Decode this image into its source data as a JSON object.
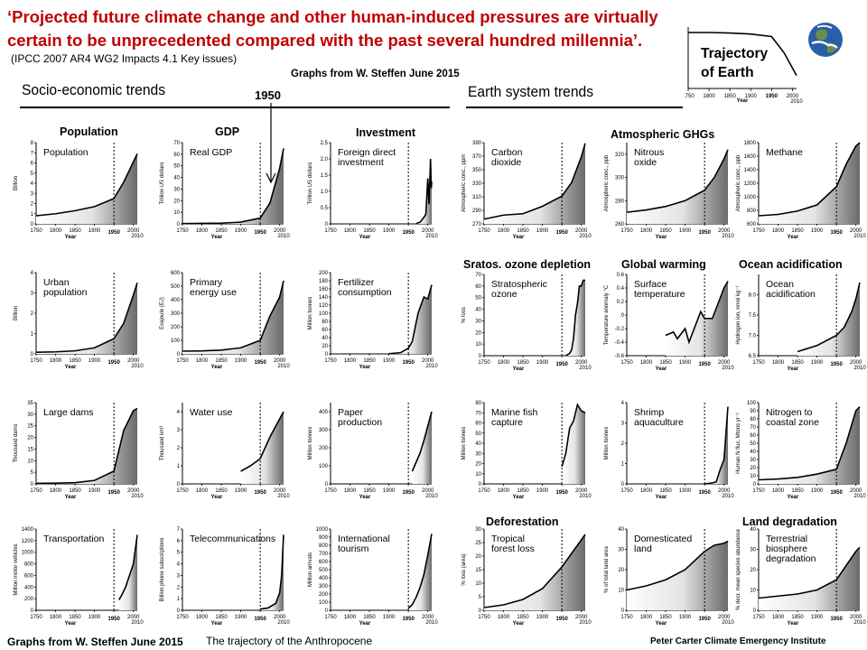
{
  "header": {
    "quote": "‘Projected future climate change and other human-induced  pressures are virtually certain to be unprecedented compared with the past several hundred millennia’.",
    "citation": "(IPCC 2007 AR4 WG2 Impacts 4.1 Key issues)",
    "credit": "Graphs from W. Steffen June 2015",
    "socio_title": "Socio-economic trends",
    "earth_title": "Earth system trends",
    "marker_1950": "1950"
  },
  "inset": {
    "title_line1": "Trajectory",
    "title_line2": "of Earth",
    "x_ticks": [
      "1750",
      "1800",
      "1850",
      "1900",
      "1950",
      "2000"
    ],
    "x_end": "2010",
    "xlabel": "Year",
    "values": [
      1.0,
      1.0,
      0.99,
      0.97,
      0.92,
      0.6,
      0.15
    ],
    "globe_icon": "earth-globe-icon",
    "colors": {
      "ocean": "#2a5fa8",
      "land": "#6a8d4a",
      "cloud": "#f4f4f4"
    }
  },
  "annotations": {
    "population": "Population",
    "gdp": "GDP",
    "investment": "Investment",
    "ghg": "Atmospheric GHGs",
    "ozone": "Sratos.  ozone depletion",
    "warming": "Global warming",
    "acid": "Ocean acidification",
    "deforest": "Deforestation",
    "landdeg": "Land degradation"
  },
  "footer": {
    "left": "Graphs from W. Steffen June 2015",
    "middle": "The trajectory of the Anthropocene",
    "right": "Peter Carter Climate Emergency Institute"
  },
  "chart_data": [
    {
      "id": "population",
      "type": "area",
      "title": [
        "Population"
      ],
      "ylabel": "Billion",
      "ylim": [
        0,
        8
      ],
      "yticks": [
        "0",
        "1",
        "2",
        "3",
        "4",
        "5",
        "6",
        "7",
        "8"
      ],
      "x": [
        1750,
        1800,
        1850,
        1900,
        1950,
        1975,
        2000,
        2010
      ],
      "y": [
        0.8,
        1.0,
        1.3,
        1.7,
        2.5,
        4.1,
        6.1,
        6.9
      ]
    },
    {
      "id": "gdp",
      "type": "area",
      "title": [
        "Real GDP"
      ],
      "ylabel": "Trillion US dollars",
      "ylim": [
        0,
        70
      ],
      "yticks": [
        "0",
        "10",
        "20",
        "30",
        "40",
        "50",
        "60",
        "70"
      ],
      "x": [
        1750,
        1800,
        1850,
        1900,
        1950,
        1975,
        2000,
        2010
      ],
      "y": [
        0.3,
        0.4,
        0.6,
        1.5,
        5,
        18,
        48,
        65
      ]
    },
    {
      "id": "investment",
      "type": "area",
      "title": [
        "Foreign direct",
        "investment"
      ],
      "ylabel": "Trillion US dollars",
      "ylim": [
        0,
        2.5
      ],
      "yticks": [
        "0",
        "0.5",
        "1.0",
        "1.5",
        "2.0",
        "2.5"
      ],
      "x": [
        1970,
        1980,
        1990,
        1995,
        2000,
        2003,
        2007,
        2009,
        2010
      ],
      "y": [
        0.01,
        0.05,
        0.2,
        0.3,
        1.4,
        0.6,
        2.0,
        1.1,
        1.3
      ]
    },
    {
      "id": "co2",
      "type": "area",
      "title": [
        "Carbon",
        "dioxide"
      ],
      "ylabel": "Atmospheric conc., ppm",
      "ylim": [
        270,
        390
      ],
      "yticks": [
        "270",
        "290",
        "310",
        "330",
        "350",
        "370",
        "390"
      ],
      "x": [
        1750,
        1800,
        1850,
        1900,
        1950,
        1975,
        2000,
        2010
      ],
      "y": [
        277,
        283,
        285,
        296,
        311,
        331,
        369,
        389
      ]
    },
    {
      "id": "n2o",
      "type": "area",
      "title": [
        "Nitrous",
        "oxide"
      ],
      "ylabel": "Atmospheric conc., ppb",
      "ylim": [
        260,
        330
      ],
      "yticks": [
        "260",
        "280",
        "300",
        "320"
      ],
      "x": [
        1750,
        1800,
        1850,
        1900,
        1950,
        1975,
        2000,
        2010
      ],
      "y": [
        270,
        272,
        275,
        280,
        289,
        300,
        316,
        324
      ]
    },
    {
      "id": "ch4",
      "type": "area",
      "title": [
        "Methane"
      ],
      "ylabel": "Atmospheric conc., ppb",
      "ylim": [
        600,
        1800
      ],
      "yticks": [
        "600",
        "800",
        "1000",
        "1200",
        "1400",
        "1600",
        "1800"
      ],
      "x": [
        1750,
        1800,
        1850,
        1900,
        1950,
        1975,
        2000,
        2010
      ],
      "y": [
        720,
        740,
        790,
        880,
        1150,
        1480,
        1750,
        1800
      ]
    },
    {
      "id": "urban",
      "type": "area",
      "title": [
        "Urban",
        "population"
      ],
      "ylabel": "Billion",
      "ylim": [
        0,
        4
      ],
      "yticks": [
        "0",
        "1",
        "2",
        "3",
        "4"
      ],
      "x": [
        1750,
        1800,
        1850,
        1900,
        1950,
        1975,
        2000,
        2010
      ],
      "y": [
        0.08,
        0.1,
        0.15,
        0.3,
        0.75,
        1.5,
        2.9,
        3.5
      ]
    },
    {
      "id": "energy",
      "type": "area",
      "title": [
        "Primary",
        "energy use"
      ],
      "ylabel": "Exajoule (EJ)",
      "ylim": [
        0,
        600
      ],
      "yticks": [
        "0",
        "100",
        "200",
        "300",
        "400",
        "500",
        "600"
      ],
      "x": [
        1750,
        1800,
        1850,
        1900,
        1950,
        1975,
        2000,
        2010
      ],
      "y": [
        20,
        22,
        28,
        45,
        100,
        280,
        420,
        540
      ]
    },
    {
      "id": "fertilizer",
      "type": "area",
      "title": [
        "Fertilizer",
        "consumption"
      ],
      "ylabel": "Million tonnes",
      "ylim": [
        0,
        200
      ],
      "yticks": [
        "0",
        "20",
        "40",
        "60",
        "80",
        "100",
        "120",
        "140",
        "160",
        "180",
        "200"
      ],
      "x": [
        1900,
        1930,
        1950,
        1960,
        1975,
        1990,
        2000,
        2010
      ],
      "y": [
        0.5,
        3,
        14,
        30,
        100,
        140,
        135,
        170
      ]
    },
    {
      "id": "ozone",
      "type": "area",
      "title": [
        "Stratospheric",
        "ozone"
      ],
      "ylabel": "% loss",
      "ylim": [
        0,
        70
      ],
      "yticks": [
        "0",
        "10",
        "20",
        "30",
        "40",
        "50",
        "60",
        "70"
      ],
      "x": [
        1960,
        1970,
        1975,
        1980,
        1985,
        1990,
        1995,
        2000,
        2005,
        2010
      ],
      "y": [
        0,
        2,
        5,
        15,
        35,
        45,
        60,
        60,
        65,
        65
      ]
    },
    {
      "id": "temp",
      "type": "area",
      "title": [
        "Surface",
        "temperature"
      ],
      "ylabel": "Temperature anomaly °C",
      "ylim": [
        -0.6,
        0.6
      ],
      "yticks": [
        "-0.6",
        "-0.4",
        "-0.2",
        "0",
        "0.2",
        "0.4",
        "0.6"
      ],
      "x": [
        1850,
        1870,
        1880,
        1900,
        1910,
        1920,
        1940,
        1950,
        1970,
        1980,
        2000,
        2010
      ],
      "y": [
        -0.3,
        -0.25,
        -0.35,
        -0.2,
        -0.4,
        -0.25,
        0.05,
        -0.05,
        -0.05,
        0.1,
        0.4,
        0.5
      ]
    },
    {
      "id": "acid",
      "type": "area",
      "title": [
        "Ocean",
        "acidification"
      ],
      "ylabel": "Hydrogen ion, nmol kg⁻¹",
      "ylim": [
        6.5,
        8.5
      ],
      "yticks": [
        "6.5",
        "7.0",
        "7.5",
        "8.0"
      ],
      "x": [
        1850,
        1900,
        1950,
        1970,
        1990,
        2000,
        2010
      ],
      "y": [
        6.6,
        6.75,
        7.0,
        7.2,
        7.6,
        7.9,
        8.3
      ]
    },
    {
      "id": "dams",
      "type": "area",
      "title": [
        "Large dams"
      ],
      "ylabel": "Thousand dams",
      "ylim": [
        0,
        35
      ],
      "yticks": [
        "0",
        "5",
        "10",
        "15",
        "20",
        "25",
        "30",
        "35"
      ],
      "x": [
        1750,
        1800,
        1850,
        1900,
        1950,
        1975,
        2000,
        2010
      ],
      "y": [
        0.2,
        0.3,
        0.5,
        1.5,
        5.5,
        23,
        31.5,
        32.5
      ]
    },
    {
      "id": "water",
      "type": "area",
      "title": [
        "Water use"
      ],
      "ylabel": "Thousand km³",
      "ylim": [
        0,
        4.5
      ],
      "yticks": [
        "0",
        "1",
        "2",
        "3",
        "4"
      ],
      "x": [
        1900,
        1925,
        1950,
        1975,
        2000,
        2010
      ],
      "y": [
        0.7,
        1.0,
        1.4,
        2.6,
        3.6,
        4.0
      ]
    },
    {
      "id": "paper",
      "type": "area",
      "title": [
        "Paper",
        "production"
      ],
      "ylabel": "Million tonnes",
      "ylim": [
        0,
        450
      ],
      "yticks": [
        "0",
        "100",
        "200",
        "300",
        "400"
      ],
      "x": [
        1960,
        1970,
        1980,
        1990,
        2000,
        2010
      ],
      "y": [
        70,
        120,
        170,
        240,
        320,
        400
      ]
    },
    {
      "id": "fish",
      "type": "area",
      "title": [
        "Marine fish",
        "capture"
      ],
      "ylabel": "Million tonnes",
      "ylim": [
        0,
        80
      ],
      "yticks": [
        "0",
        "10",
        "20",
        "30",
        "40",
        "50",
        "60",
        "70",
        "80"
      ],
      "x": [
        1950,
        1960,
        1970,
        1980,
        1990,
        2000,
        2010
      ],
      "y": [
        17,
        30,
        55,
        62,
        78,
        72,
        70
      ]
    },
    {
      "id": "shrimp",
      "type": "area",
      "title": [
        "Shrimp",
        "aquaculture"
      ],
      "ylabel": "Million tonnes",
      "ylim": [
        0,
        4
      ],
      "yticks": [
        "0",
        "1",
        "2",
        "3",
        "4"
      ],
      "x": [
        1950,
        1970,
        1980,
        1990,
        2000,
        2005,
        2010
      ],
      "y": [
        0,
        0.05,
        0.1,
        0.7,
        1.2,
        2.5,
        3.8
      ]
    },
    {
      "id": "nitrogen",
      "type": "area",
      "title": [
        "Nitrogen to",
        "coastal zone"
      ],
      "ylabel": "Human N flux, Mtons yr⁻¹",
      "ylim": [
        0,
        100
      ],
      "yticks": [
        "0",
        "10",
        "20",
        "30",
        "40",
        "50",
        "60",
        "70",
        "80",
        "90",
        "100"
      ],
      "x": [
        1750,
        1800,
        1850,
        1900,
        1950,
        1975,
        2000,
        2010
      ],
      "y": [
        5,
        6,
        8,
        12,
        18,
        50,
        90,
        95
      ]
    },
    {
      "id": "transport",
      "type": "area",
      "title": [
        "Transportation"
      ],
      "ylabel": "Million motor vehicles",
      "ylim": [
        0,
        1400
      ],
      "yticks": [
        "0",
        "200",
        "400",
        "600",
        "800",
        "1000",
        "1200",
        "1400"
      ],
      "x": [
        1963,
        1970,
        1980,
        1990,
        2000,
        2010
      ],
      "y": [
        180,
        260,
        400,
        600,
        800,
        1300
      ]
    },
    {
      "id": "telecom",
      "type": "area",
      "title": [
        "Telecommunications"
      ],
      "ylabel": "Billion phone subscriptions",
      "ylim": [
        0,
        7
      ],
      "yticks": [
        "0",
        "1",
        "2",
        "3",
        "4",
        "5",
        "6",
        "7"
      ],
      "x": [
        1950,
        1970,
        1990,
        2000,
        2005,
        2010
      ],
      "y": [
        0.1,
        0.2,
        0.6,
        1.5,
        3.0,
        6.5
      ]
    },
    {
      "id": "tourism",
      "type": "area",
      "title": [
        "International",
        "tourism"
      ],
      "ylabel": "Million arrivals",
      "ylim": [
        0,
        1000
      ],
      "yticks": [
        "0",
        "100",
        "200",
        "300",
        "400",
        "500",
        "600",
        "700",
        "800",
        "900",
        "1000"
      ],
      "x": [
        1950,
        1960,
        1970,
        1980,
        1990,
        2000,
        2010
      ],
      "y": [
        25,
        70,
        160,
        280,
        440,
        680,
        940
      ]
    },
    {
      "id": "forest",
      "type": "area",
      "title": [
        "Tropical",
        "forest loss"
      ],
      "ylabel": "% loss (area)",
      "ylim": [
        0,
        30
      ],
      "yticks": [
        "0",
        "5",
        "10",
        "15",
        "20",
        "25",
        "30"
      ],
      "x": [
        1750,
        1800,
        1850,
        1900,
        1950,
        1975,
        2000,
        2010
      ],
      "y": [
        1,
        2,
        4,
        8,
        16,
        21,
        26,
        28
      ]
    },
    {
      "id": "land",
      "type": "area",
      "title": [
        "Domesticated",
        "land"
      ],
      "ylabel": "% of total land area",
      "ylim": [
        0,
        40
      ],
      "yticks": [
        "0",
        "10",
        "20",
        "30",
        "40"
      ],
      "x": [
        1750,
        1800,
        1850,
        1900,
        1950,
        1975,
        2000,
        2010
      ],
      "y": [
        10,
        12,
        15,
        20,
        29,
        32,
        33,
        34
      ]
    },
    {
      "id": "biosphere",
      "type": "area",
      "title": [
        "Terrestrial",
        "biosphere",
        "degradation"
      ],
      "ylabel": "% decr. mean species abundance",
      "ylim": [
        0,
        40
      ],
      "yticks": [
        "0",
        "10",
        "20",
        "30",
        "40"
      ],
      "x": [
        1750,
        1800,
        1850,
        1900,
        1950,
        1975,
        2000,
        2010
      ],
      "y": [
        6,
        7,
        8,
        10,
        15,
        22,
        29,
        31
      ]
    }
  ]
}
